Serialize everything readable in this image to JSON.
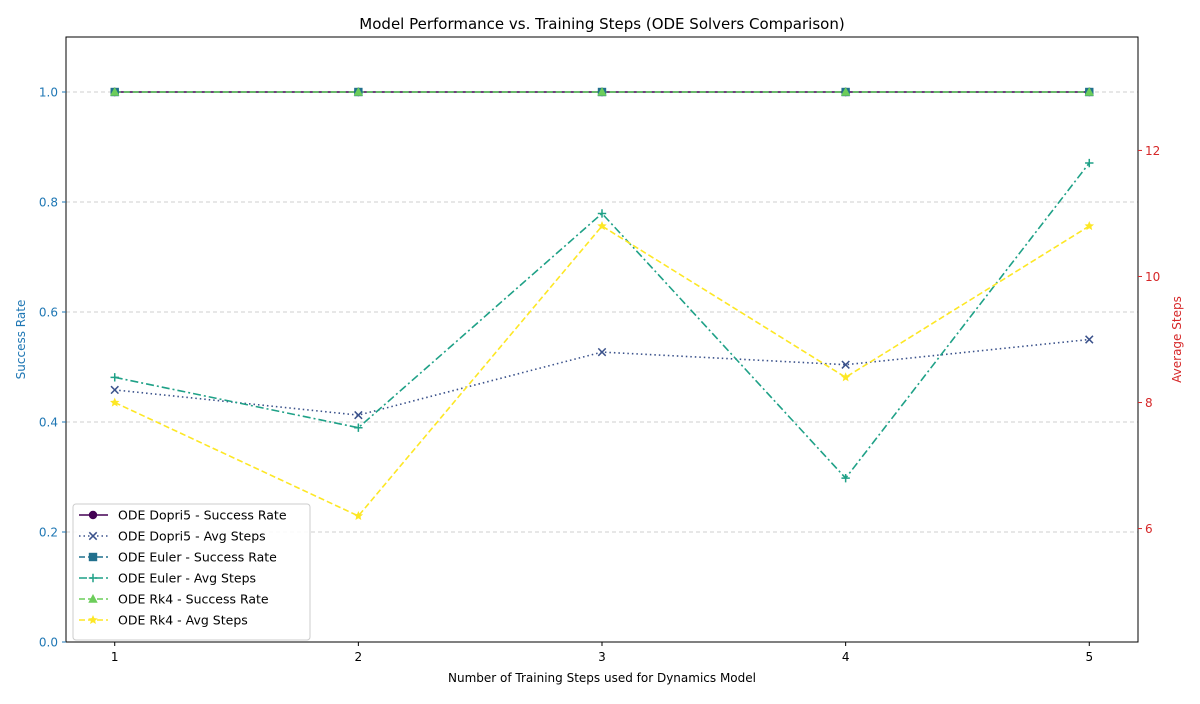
{
  "chart_data": {
    "type": "line",
    "title": "Model Performance vs. Training Steps (ODE Solvers Comparison)",
    "xlabel": "Number of Training Steps used for Dynamics Model",
    "ylabel_left": "Success Rate",
    "ylabel_right": "Average Steps",
    "x": [
      1,
      2,
      3,
      4,
      5
    ],
    "x_ticks": [
      "1",
      "2",
      "3",
      "4",
      "5"
    ],
    "xlim": [
      0.8,
      5.2
    ],
    "ylim_left": [
      0.0,
      1.1
    ],
    "ylim_right": [
      4.2,
      13.8
    ],
    "y_ticks_left": [
      "0.0",
      "0.2",
      "0.4",
      "0.6",
      "0.8",
      "1.0"
    ],
    "y_ticks_right": [
      "6",
      "8",
      "10",
      "12"
    ],
    "left_axis_color": "#1f77b4",
    "right_axis_color": "#d62728",
    "grid": "horizontal dashed",
    "legend_position": "lower-left",
    "series": [
      {
        "name": "ODE Dopri5 - Success Rate",
        "axis": "left",
        "values": [
          1.0,
          1.0,
          1.0,
          1.0,
          1.0
        ],
        "color": "#440154",
        "dash": "solid",
        "marker": "circle"
      },
      {
        "name": "ODE Dopri5 - Avg Steps",
        "axis": "right",
        "values": [
          8.2,
          7.8,
          8.8,
          8.6,
          9.0
        ],
        "color": "#3b528b",
        "dash": "dotted",
        "marker": "x"
      },
      {
        "name": "ODE Euler - Success Rate",
        "axis": "left",
        "values": [
          1.0,
          1.0,
          1.0,
          1.0,
          1.0
        ],
        "color": "#21708d",
        "dash": "dashed",
        "marker": "square"
      },
      {
        "name": "ODE Euler - Avg Steps",
        "axis": "right",
        "values": [
          8.4,
          7.6,
          11.0,
          6.8,
          11.8
        ],
        "color": "#1fa187",
        "dash": "dashdot",
        "marker": "plus"
      },
      {
        "name": "ODE Rk4 - Success Rate",
        "axis": "left",
        "values": [
          1.0,
          1.0,
          1.0,
          1.0,
          1.0
        ],
        "color": "#6ccd5a",
        "dash": "dashed",
        "marker": "triangle"
      },
      {
        "name": "ODE Rk4 - Avg Steps",
        "axis": "right",
        "values": [
          8.0,
          6.2,
          10.8,
          8.4,
          10.8
        ],
        "color": "#fde725",
        "dash": "dashed",
        "marker": "star"
      }
    ]
  }
}
